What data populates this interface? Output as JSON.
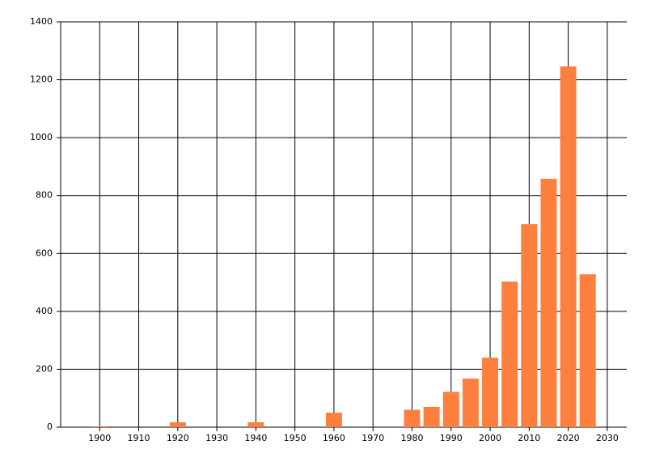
{
  "chart_data": {
    "type": "bar",
    "x": [
      1900,
      1920,
      1940,
      1960,
      1980,
      1985,
      1990,
      1995,
      2000,
      2005,
      2010,
      2015,
      2020,
      2025
    ],
    "values": [
      3,
      17,
      17,
      50,
      60,
      70,
      122,
      168,
      240,
      503,
      701,
      858,
      1246,
      528
    ],
    "color": "#ff7f3f",
    "xlim": [
      1890,
      2035
    ],
    "xticks": [
      1900,
      1910,
      1920,
      1930,
      1940,
      1950,
      1960,
      1970,
      1980,
      1990,
      2000,
      2010,
      2020,
      2030
    ],
    "ylim": [
      0,
      1400
    ],
    "yticks": [
      0,
      200,
      400,
      600,
      800,
      1000,
      1200,
      1400
    ],
    "grid": true
  }
}
